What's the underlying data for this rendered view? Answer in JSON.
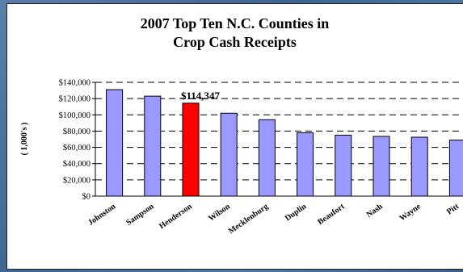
{
  "chart_data": {
    "type": "bar",
    "title_line1": "2007 Top Ten N.C. Counties in",
    "title_line2": "Crop Cash Receipts",
    "ylabel": "( 1,000's )",
    "xlabel": "",
    "ylim": [
      0,
      140000
    ],
    "yticks": [
      "$0",
      "$20,000",
      "$40,000",
      "$60,000",
      "$80,000",
      "$100,000",
      "$120,000",
      "$140,000"
    ],
    "ytick_values": [
      0,
      20000,
      40000,
      60000,
      80000,
      100000,
      120000,
      140000
    ],
    "categories": [
      "Johnston",
      "Sampson",
      "Henderson",
      "Wilson",
      "Mecklenburg",
      "Duplin",
      "Beaufort",
      "Nash",
      "Wayne",
      "Pitt"
    ],
    "values": [
      131000,
      123000,
      114347,
      102000,
      94000,
      78000,
      75000,
      73500,
      72500,
      69000
    ],
    "highlight_index": 2,
    "highlight_label": "$114,347",
    "colors": {
      "bar": "#9999ff",
      "highlight": "#ff0000",
      "outline": "#000000"
    },
    "grid": "dashed horizontal"
  }
}
